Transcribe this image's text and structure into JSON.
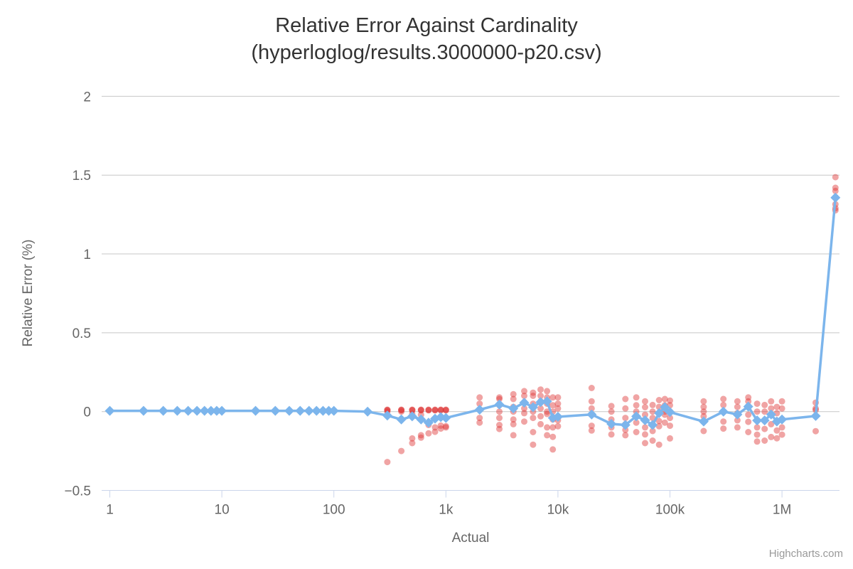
{
  "chart_data": {
    "type": "line",
    "title": "Relative Error Against Cardinality",
    "subtitle": "(hyperloglog/results.3000000-p20.csv)",
    "xlabel": "Actual",
    "ylabel": "Relative Error (%)",
    "credit": "Highcharts.com",
    "x_scale": "log",
    "xlim": [
      0.85,
      3300000
    ],
    "ylim": [
      -0.5,
      2
    ],
    "grid": "horizontal",
    "legend": "none",
    "grid_color": "#c7c7c7",
    "axis_line_color": "#ccd6eb",
    "tick_label_color": "#666666",
    "title_color": "#333333",
    "xticks": [
      1,
      10,
      100,
      1000,
      10000,
      100000,
      1000000
    ],
    "xtick_labels": [
      "1",
      "10",
      "100",
      "1k",
      "10k",
      "100k",
      "1M"
    ],
    "yticks": [
      2,
      1.5,
      1,
      0.5,
      0,
      -0.5
    ],
    "ytick_labels": [
      "2",
      "1.5",
      "1",
      "0.5",
      "0",
      "−0.5"
    ],
    "series": [
      {
        "name": "samples",
        "type": "scatter",
        "marker": "circle",
        "color": "#dd3535",
        "opacity": 0.45,
        "points": [
          [
            300,
            0.012
          ],
          [
            300,
            0.008
          ],
          [
            300,
            0.01
          ],
          [
            300,
            0
          ],
          [
            300,
            -0.32
          ],
          [
            400,
            0.012
          ],
          [
            400,
            0.008
          ],
          [
            400,
            0.01
          ],
          [
            400,
            0
          ],
          [
            400,
            -0.25
          ],
          [
            500,
            0.012
          ],
          [
            500,
            0.008
          ],
          [
            500,
            0.01
          ],
          [
            500,
            -0.015
          ],
          [
            500,
            -0.2
          ],
          [
            500,
            -0.17
          ],
          [
            600,
            0.012
          ],
          [
            600,
            0.008
          ],
          [
            600,
            0.01
          ],
          [
            600,
            -0.02
          ],
          [
            600,
            -0.165
          ],
          [
            600,
            -0.15
          ],
          [
            700,
            0.012
          ],
          [
            700,
            0.008
          ],
          [
            700,
            0.01
          ],
          [
            700,
            -0.138
          ],
          [
            700,
            -0.085
          ],
          [
            800,
            0.012
          ],
          [
            800,
            0.008
          ],
          [
            800,
            0.01
          ],
          [
            800,
            -0.128
          ],
          [
            800,
            -0.1
          ],
          [
            900,
            0.012
          ],
          [
            900,
            0.008
          ],
          [
            900,
            0.01
          ],
          [
            900,
            -0.108
          ],
          [
            900,
            -0.089
          ],
          [
            1000,
            0.012
          ],
          [
            1000,
            0.008
          ],
          [
            1000,
            0.01
          ],
          [
            1000,
            -0.1
          ],
          [
            1000,
            -0.093
          ],
          [
            2000,
            0.09
          ],
          [
            2000,
            0.05
          ],
          [
            2000,
            0.01
          ],
          [
            2000,
            -0.04
          ],
          [
            2000,
            -0.07
          ],
          [
            3000,
            0.09
          ],
          [
            3000,
            0.08
          ],
          [
            3000,
            0.04
          ],
          [
            3000,
            0
          ],
          [
            3000,
            -0.04
          ],
          [
            3000,
            -0.085
          ],
          [
            3000,
            -0.11
          ],
          [
            4000,
            0.11
          ],
          [
            4000,
            0.08
          ],
          [
            4000,
            0.03
          ],
          [
            4000,
            0
          ],
          [
            4000,
            -0.05
          ],
          [
            4000,
            -0.08
          ],
          [
            4000,
            -0.15
          ],
          [
            5000,
            0.13
          ],
          [
            5000,
            0.1
          ],
          [
            5000,
            0.06
          ],
          [
            5000,
            0.02
          ],
          [
            5000,
            -0.01
          ],
          [
            5000,
            -0.063
          ],
          [
            6000,
            0.12
          ],
          [
            6000,
            0.1
          ],
          [
            6000,
            0.05
          ],
          [
            6000,
            0
          ],
          [
            6000,
            -0.04
          ],
          [
            6000,
            -0.13
          ],
          [
            6000,
            -0.21
          ],
          [
            7000,
            0.14
          ],
          [
            7000,
            0.1
          ],
          [
            7000,
            0.065
          ],
          [
            7000,
            0.02
          ],
          [
            7000,
            -0.03
          ],
          [
            7000,
            -0.08
          ],
          [
            8000,
            0.13
          ],
          [
            8000,
            0.09
          ],
          [
            8000,
            0.05
          ],
          [
            8000,
            0
          ],
          [
            8000,
            -0.015
          ],
          [
            8000,
            -0.1
          ],
          [
            8000,
            -0.15
          ],
          [
            9000,
            0.09
          ],
          [
            9000,
            0.04
          ],
          [
            9000,
            0
          ],
          [
            9000,
            -0.05
          ],
          [
            9000,
            -0.1
          ],
          [
            9000,
            -0.16
          ],
          [
            9000,
            -0.24
          ],
          [
            10000,
            0.09
          ],
          [
            10000,
            0.05
          ],
          [
            10000,
            0.02
          ],
          [
            10000,
            -0.03
          ],
          [
            10000,
            -0.055
          ],
          [
            10000,
            -0.093
          ],
          [
            20000,
            0.15
          ],
          [
            20000,
            0.065
          ],
          [
            20000,
            0.02
          ],
          [
            20000,
            -0.02
          ],
          [
            20000,
            -0.09
          ],
          [
            20000,
            -0.12
          ],
          [
            30000,
            0.035
          ],
          [
            30000,
            0
          ],
          [
            30000,
            -0.05
          ],
          [
            30000,
            -0.08
          ],
          [
            30000,
            -0.1
          ],
          [
            30000,
            -0.145
          ],
          [
            40000,
            0.08
          ],
          [
            40000,
            0.02
          ],
          [
            40000,
            -0.04
          ],
          [
            40000,
            -0.08
          ],
          [
            40000,
            -0.116
          ],
          [
            40000,
            -0.15
          ],
          [
            50000,
            0.09
          ],
          [
            50000,
            0.04
          ],
          [
            50000,
            0
          ],
          [
            50000,
            -0.03
          ],
          [
            50000,
            -0.07
          ],
          [
            50000,
            -0.13
          ],
          [
            60000,
            0.065
          ],
          [
            60000,
            0.028
          ],
          [
            60000,
            -0.02
          ],
          [
            60000,
            -0.055
          ],
          [
            60000,
            -0.1
          ],
          [
            60000,
            -0.145
          ],
          [
            60000,
            -0.2
          ],
          [
            70000,
            0.042
          ],
          [
            70000,
            0
          ],
          [
            70000,
            -0.04
          ],
          [
            70000,
            -0.085
          ],
          [
            70000,
            -0.123
          ],
          [
            70000,
            -0.184
          ],
          [
            80000,
            0.073
          ],
          [
            80000,
            0.03
          ],
          [
            80000,
            -0.01
          ],
          [
            80000,
            -0.06
          ],
          [
            80000,
            -0.093
          ],
          [
            80000,
            -0.21
          ],
          [
            90000,
            0.08
          ],
          [
            90000,
            0.04
          ],
          [
            90000,
            0
          ],
          [
            90000,
            -0.02
          ],
          [
            90000,
            -0.07
          ],
          [
            100000,
            0.07
          ],
          [
            100000,
            0.04
          ],
          [
            100000,
            0
          ],
          [
            100000,
            -0.04
          ],
          [
            100000,
            -0.09
          ],
          [
            100000,
            -0.17
          ],
          [
            200000,
            0.065
          ],
          [
            200000,
            0.03
          ],
          [
            200000,
            0
          ],
          [
            200000,
            -0.03
          ],
          [
            200000,
            -0.065
          ],
          [
            200000,
            -0.123
          ],
          [
            300000,
            0.08
          ],
          [
            300000,
            0.042
          ],
          [
            300000,
            0
          ],
          [
            300000,
            -0.063
          ],
          [
            300000,
            -0.108
          ],
          [
            400000,
            0.065
          ],
          [
            400000,
            0.03
          ],
          [
            400000,
            -0.01
          ],
          [
            400000,
            -0.055
          ],
          [
            400000,
            -0.1
          ],
          [
            500000,
            0.09
          ],
          [
            500000,
            0.065
          ],
          [
            500000,
            0.032
          ],
          [
            500000,
            -0.02
          ],
          [
            500000,
            -0.065
          ],
          [
            500000,
            -0.13
          ],
          [
            600000,
            0.05
          ],
          [
            600000,
            0
          ],
          [
            600000,
            -0.056
          ],
          [
            600000,
            -0.1
          ],
          [
            600000,
            -0.146
          ],
          [
            600000,
            -0.19
          ],
          [
            700000,
            0.042
          ],
          [
            700000,
            0
          ],
          [
            700000,
            -0.056
          ],
          [
            700000,
            -0.11
          ],
          [
            700000,
            -0.184
          ],
          [
            800000,
            0.065
          ],
          [
            800000,
            0.02
          ],
          [
            800000,
            -0.018
          ],
          [
            800000,
            -0.08
          ],
          [
            800000,
            -0.161
          ],
          [
            900000,
            0.03
          ],
          [
            900000,
            -0.01
          ],
          [
            900000,
            -0.063
          ],
          [
            900000,
            -0.12
          ],
          [
            900000,
            -0.169
          ],
          [
            1000000,
            0.065
          ],
          [
            1000000,
            0.02
          ],
          [
            1000000,
            -0.05
          ],
          [
            1000000,
            -0.1
          ],
          [
            1000000,
            -0.146
          ],
          [
            2000000,
            0.057
          ],
          [
            2000000,
            0.02
          ],
          [
            2000000,
            0.01
          ],
          [
            2000000,
            -0.028
          ],
          [
            2000000,
            -0.124
          ],
          [
            3000000,
            1.487
          ],
          [
            3000000,
            1.42
          ],
          [
            3000000,
            1.4
          ],
          [
            3000000,
            1.36
          ],
          [
            3000000,
            1.315
          ],
          [
            3000000,
            1.29
          ],
          [
            3000000,
            1.277
          ]
        ]
      },
      {
        "name": "mean relative error",
        "type": "line",
        "marker": "diamond",
        "color": "#7cb5ec",
        "opacity": 1,
        "points": [
          [
            1,
            0.005
          ],
          [
            2,
            0.005
          ],
          [
            3,
            0.005
          ],
          [
            4,
            0.005
          ],
          [
            5,
            0.005
          ],
          [
            6,
            0.005
          ],
          [
            7,
            0.005
          ],
          [
            8,
            0.005
          ],
          [
            9,
            0.005
          ],
          [
            10,
            0.005
          ],
          [
            20,
            0.005
          ],
          [
            30,
            0.005
          ],
          [
            40,
            0.005
          ],
          [
            50,
            0.005
          ],
          [
            60,
            0.005
          ],
          [
            70,
            0.005
          ],
          [
            80,
            0.005
          ],
          [
            90,
            0.005
          ],
          [
            100,
            0.005
          ],
          [
            200,
            0
          ],
          [
            300,
            -0.025
          ],
          [
            400,
            -0.05
          ],
          [
            500,
            -0.03
          ],
          [
            600,
            -0.05
          ],
          [
            700,
            -0.07
          ],
          [
            800,
            -0.045
          ],
          [
            900,
            -0.035
          ],
          [
            1000,
            -0.04
          ],
          [
            2000,
            0.012
          ],
          [
            3000,
            0.045
          ],
          [
            4000,
            0.02
          ],
          [
            5000,
            0.057
          ],
          [
            6000,
            0.028
          ],
          [
            7000,
            0.06
          ],
          [
            8000,
            0.065
          ],
          [
            9000,
            -0.04
          ],
          [
            10000,
            -0.033
          ],
          [
            20000,
            -0.018
          ],
          [
            30000,
            -0.078
          ],
          [
            40000,
            -0.085
          ],
          [
            50000,
            -0.03
          ],
          [
            60000,
            -0.055
          ],
          [
            70000,
            -0.085
          ],
          [
            80000,
            -0.01
          ],
          [
            90000,
            0.028
          ],
          [
            100000,
            -0.003
          ],
          [
            200000,
            -0.063
          ],
          [
            300000,
            0
          ],
          [
            400000,
            -0.018
          ],
          [
            500000,
            0.032
          ],
          [
            600000,
            -0.056
          ],
          [
            700000,
            -0.056
          ],
          [
            800000,
            -0.018
          ],
          [
            900000,
            -0.063
          ],
          [
            1000000,
            -0.05
          ],
          [
            2000000,
            -0.028
          ],
          [
            3000000,
            1.357
          ]
        ]
      }
    ]
  }
}
